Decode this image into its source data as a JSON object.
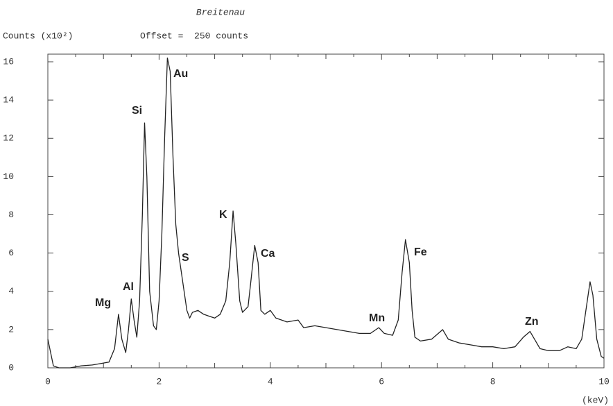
{
  "chart_data": {
    "type": "line",
    "title": "Breitenau",
    "y_axis_label": "Counts (x10²)",
    "subtitle": "Offset =  250 counts",
    "x_axis_label": "(keV)",
    "xlim": [
      0,
      10
    ],
    "ylim": [
      0,
      16.4
    ],
    "xticks": [
      0,
      2,
      4,
      6,
      8,
      10
    ],
    "yticks": [
      0,
      2,
      4,
      6,
      8,
      10,
      12,
      14,
      16
    ],
    "annotations": [
      "Mg",
      "Al",
      "Si",
      "Au",
      "S",
      "K",
      "Ca",
      "Mn",
      "Fe",
      "Zn"
    ],
    "series": [
      {
        "name": "Breitenau",
        "color": "#222222",
        "x": [
          0,
          0.05,
          0.1,
          0.2,
          0.4,
          0.6,
          0.8,
          1.0,
          1.1,
          1.2,
          1.27,
          1.33,
          1.4,
          1.45,
          1.5,
          1.55,
          1.6,
          1.65,
          1.7,
          1.74,
          1.78,
          1.83,
          1.9,
          1.95,
          2.0,
          2.05,
          2.1,
          2.15,
          2.2,
          2.25,
          2.3,
          2.35,
          2.4,
          2.45,
          2.5,
          2.55,
          2.6,
          2.7,
          2.8,
          2.9,
          3.0,
          3.1,
          3.2,
          3.27,
          3.33,
          3.38,
          3.45,
          3.5,
          3.6,
          3.65,
          3.72,
          3.78,
          3.83,
          3.9,
          4.0,
          4.1,
          4.3,
          4.5,
          4.6,
          4.8,
          5.0,
          5.2,
          5.4,
          5.6,
          5.8,
          5.95,
          6.05,
          6.2,
          6.3,
          6.37,
          6.43,
          6.5,
          6.55,
          6.6,
          6.7,
          6.9,
          7.1,
          7.2,
          7.4,
          7.6,
          7.8,
          8.0,
          8.2,
          8.4,
          8.55,
          8.67,
          8.75,
          8.85,
          9.0,
          9.2,
          9.35,
          9.5,
          9.6,
          9.7,
          9.75,
          9.8,
          9.87,
          9.95,
          10.0
        ],
        "values": [
          1.5,
          0.8,
          0.1,
          0.0,
          0.0,
          0.1,
          0.15,
          0.25,
          0.3,
          1.0,
          2.8,
          1.5,
          0.8,
          2.0,
          3.6,
          2.5,
          1.6,
          3.5,
          8.0,
          12.8,
          10.0,
          4.0,
          2.2,
          2.0,
          3.5,
          7.0,
          12.0,
          16.2,
          15.5,
          11.0,
          7.5,
          6.0,
          5.0,
          4.0,
          3.0,
          2.6,
          2.9,
          3.0,
          2.8,
          2.7,
          2.6,
          2.8,
          3.5,
          5.5,
          8.2,
          6.5,
          3.5,
          2.9,
          3.2,
          4.5,
          6.4,
          5.5,
          3.0,
          2.8,
          3.0,
          2.6,
          2.4,
          2.5,
          2.1,
          2.2,
          2.1,
          2.0,
          1.9,
          1.8,
          1.8,
          2.1,
          1.8,
          1.7,
          2.5,
          5.0,
          6.7,
          5.5,
          3.0,
          1.6,
          1.4,
          1.5,
          2.0,
          1.5,
          1.3,
          1.2,
          1.1,
          1.1,
          1.0,
          1.1,
          1.6,
          1.9,
          1.5,
          1.0,
          0.9,
          0.9,
          1.1,
          1.0,
          1.5,
          3.5,
          4.5,
          3.8,
          1.5,
          0.6,
          0.5
        ]
      }
    ]
  }
}
